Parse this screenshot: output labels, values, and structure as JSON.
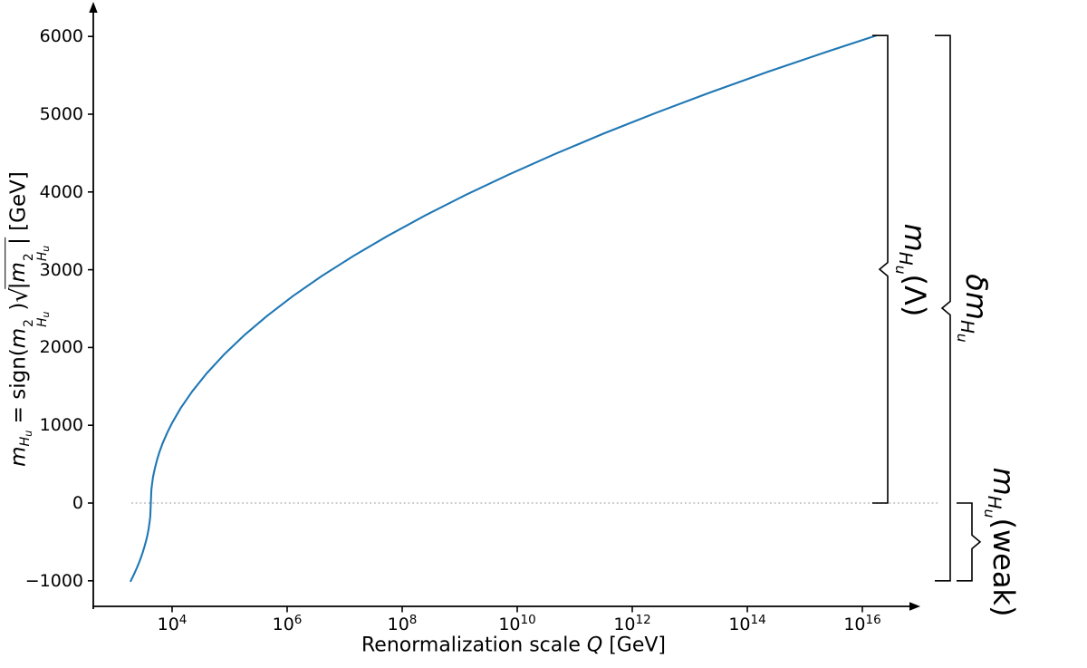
{
  "figure": {
    "background": "#ffffff",
    "axis_color": "#000000",
    "zero_line_color": "#b9b9b9"
  },
  "math": {
    "m": "m",
    "H": "H",
    "u": "u",
    "two": "2",
    "eq": " = sign(",
    "rp": ")",
    "sqrt": "√",
    "pipe": "|",
    "gev": " [GeV]",
    "delta": "δ",
    "lambda": "(Λ)",
    "weak": "(weak)"
  },
  "xlabel": {
    "pre": "Renormalization scale ",
    "q": "Q",
    "post": " [GeV]"
  },
  "chart_data": {
    "type": "line",
    "title": "",
    "xlabel": "Renormalization scale Q [GeV]",
    "ylabel": "m_Hu = sign(m_Hu^2) sqrt(|m_Hu^2|) [GeV]",
    "x_scale": "log10",
    "xlim_log10": [
      2.6,
      17.0
    ],
    "ylim": [
      -1350,
      6400
    ],
    "xticks_log10": [
      4,
      6,
      8,
      10,
      12,
      14,
      16
    ],
    "yticks": [
      -1000,
      0,
      1000,
      2000,
      3000,
      4000,
      5000,
      6000
    ],
    "zero_line_y": 0,
    "grid": false,
    "legend": "none",
    "series": [
      {
        "name": "m_Hu running",
        "color": "#1f77b4",
        "points_log10Q_vs_GeV": [
          [
            3.28,
            -1002
          ],
          [
            3.31,
            -958
          ],
          [
            3.34,
            -912
          ],
          [
            3.37,
            -863
          ],
          [
            3.4,
            -812
          ],
          [
            3.43,
            -757
          ],
          [
            3.46,
            -698
          ],
          [
            3.49,
            -633
          ],
          [
            3.52,
            -561
          ],
          [
            3.55,
            -479
          ],
          [
            3.57,
            -415
          ],
          [
            3.59,
            -339
          ],
          [
            3.61,
            -239
          ],
          [
            3.62,
            -169
          ],
          [
            3.63,
            0
          ],
          [
            3.64,
            169
          ],
          [
            3.65,
            239
          ],
          [
            3.67,
            339
          ],
          [
            3.7,
            448
          ],
          [
            3.74,
            561
          ],
          [
            3.78,
            656
          ],
          [
            3.84,
            776
          ],
          [
            3.92,
            912
          ],
          [
            4.0,
            1030
          ],
          [
            4.15,
            1221
          ],
          [
            4.35,
            1436
          ],
          [
            4.6,
            1667
          ],
          [
            4.9,
            1908
          ],
          [
            5.25,
            2155
          ],
          [
            5.65,
            2406
          ],
          [
            6.1,
            2661
          ],
          [
            6.6,
            2918
          ],
          [
            7.15,
            3176
          ],
          [
            7.75,
            3436
          ],
          [
            8.4,
            3698
          ],
          [
            9.1,
            3960
          ],
          [
            9.85,
            4223
          ],
          [
            10.65,
            4486
          ],
          [
            11.5,
            4750
          ],
          [
            12.4,
            5014
          ],
          [
            13.35,
            5278
          ],
          [
            14.35,
            5543
          ],
          [
            15.4,
            5808
          ],
          [
            16.24,
            6012
          ]
        ]
      }
    ],
    "annotations": [
      {
        "name": "bracket-mHu-Lambda",
        "label": "m_Hu(Λ)",
        "range_GeV": [
          0,
          6012
        ],
        "tip": "left"
      },
      {
        "name": "bracket-delta-mHu",
        "label": "δm_Hu",
        "range_GeV": [
          -1000,
          6012
        ],
        "tip": "left"
      },
      {
        "name": "bracket-mHu-weak",
        "label": "m_Hu(weak)",
        "range_GeV": [
          -1000,
          0
        ],
        "tip": "right"
      }
    ]
  }
}
